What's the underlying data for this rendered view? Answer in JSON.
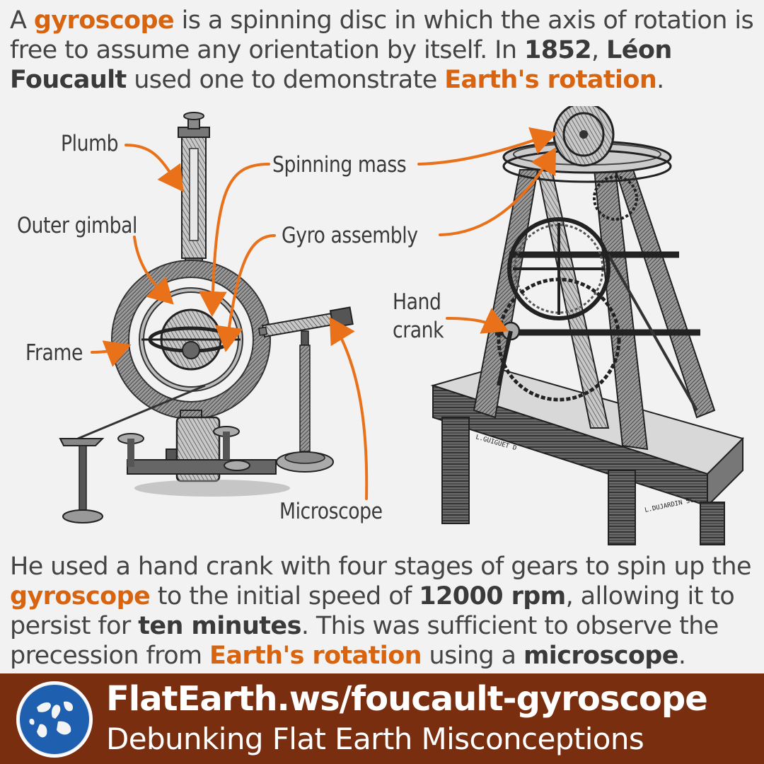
{
  "intro": {
    "segments": [
      {
        "text": "A ",
        "style": "n"
      },
      {
        "text": "gyroscope",
        "style": "hl"
      },
      {
        "text": " is a spinning disc in which the axis of rotation is free to assume any orientation by itself. In ",
        "style": "n"
      },
      {
        "text": "1852",
        "style": "bd"
      },
      {
        "text": ", ",
        "style": "n"
      },
      {
        "text": "Léon Foucault",
        "style": "bd"
      },
      {
        "text": " used one to demonstrate ",
        "style": "n"
      },
      {
        "text": "Earth's rotation",
        "style": "hl"
      },
      {
        "text": ".",
        "style": "n"
      }
    ]
  },
  "labels": {
    "plumb": "Plumb",
    "spinning_mass": "Spinning mass",
    "outer_gimbal": "Outer gimbal",
    "gyro_assembly": "Gyro assembly",
    "hand_crank_line1": "Hand",
    "hand_crank_line2": "crank",
    "frame": "Frame",
    "microscope": "Microscope"
  },
  "engraving": {
    "signature_1": "L.GUIGUET D",
    "signature_2": "L.DUJARDIN SC."
  },
  "outro": {
    "segments": [
      {
        "text": "He used a hand crank with four stages of gears to spin up the ",
        "style": "n"
      },
      {
        "text": "gyroscope",
        "style": "hl"
      },
      {
        "text": " to the initial speed of ",
        "style": "n"
      },
      {
        "text": "12000 rpm",
        "style": "bd"
      },
      {
        "text": ", allowing it to persist for ",
        "style": "n"
      },
      {
        "text": "ten minutes",
        "style": "bd"
      },
      {
        "text": ". This was sufficient to observe the precession from ",
        "style": "n"
      },
      {
        "text": "Earth's rotation",
        "style": "hl"
      },
      {
        "text": " using a ",
        "style": "n"
      },
      {
        "text": "microscope",
        "style": "bd"
      },
      {
        "text": ".",
        "style": "n"
      }
    ]
  },
  "footer": {
    "url": "FlatEarth.ws/foucault-gyroscope",
    "tagline": "Debunking Flat Earth Misconceptions"
  },
  "colors": {
    "accent": "#d86410",
    "footer_bg": "#7a2e10",
    "background": "#f2f2f2",
    "text": "#444444",
    "arrow": "#e8711a"
  },
  "icons": {
    "logo": "globe-logo-icon"
  }
}
